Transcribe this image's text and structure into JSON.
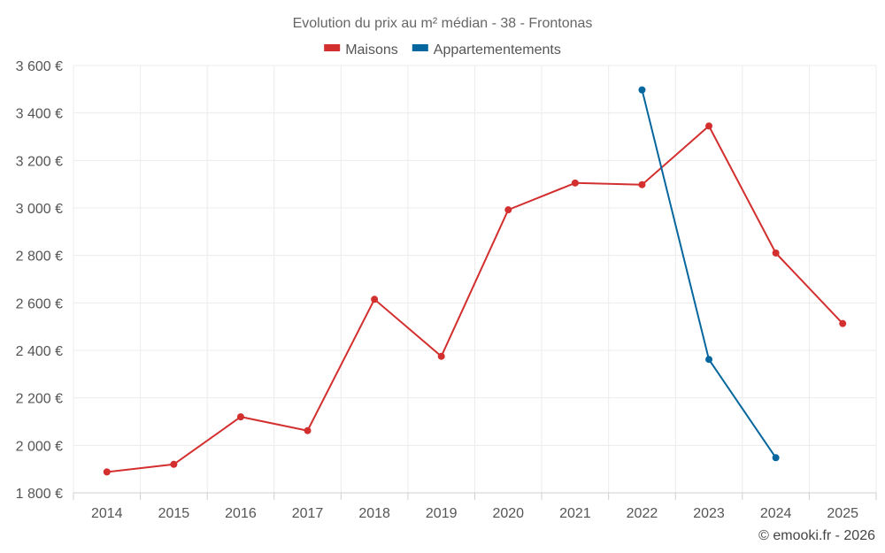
{
  "chart_data": {
    "type": "line",
    "title": "Evolution du prix au m² médian - 38 - Frontonas",
    "categories": [
      "2014",
      "2015",
      "2016",
      "2017",
      "2018",
      "2019",
      "2020",
      "2021",
      "2022",
      "2023",
      "2024",
      "2025"
    ],
    "series": [
      {
        "name": "Maisons",
        "color": "#d32f2f",
        "values": [
          1888,
          1920,
          2120,
          2062,
          2615,
          2375,
          2992,
          3105,
          3098,
          3345,
          2810,
          2513
        ]
      },
      {
        "name": "Appartementements",
        "color": "#06669e",
        "values": [
          null,
          null,
          null,
          null,
          null,
          null,
          null,
          null,
          3497,
          2362,
          1948,
          null
        ]
      }
    ],
    "ylim": [
      1800,
      3600
    ],
    "yticks": [
      1800,
      2000,
      2200,
      2400,
      2600,
      2800,
      3000,
      3200,
      3400,
      3600
    ],
    "ytick_labels": [
      "1 800 €",
      "2 000 €",
      "2 200 €",
      "2 400 €",
      "2 600 €",
      "2 800 €",
      "3 000 €",
      "3 200 €",
      "3 400 €",
      "3 600 €"
    ],
    "grid": true,
    "legend_position": "top-center"
  },
  "credit": "© emooki.fr - 2026"
}
